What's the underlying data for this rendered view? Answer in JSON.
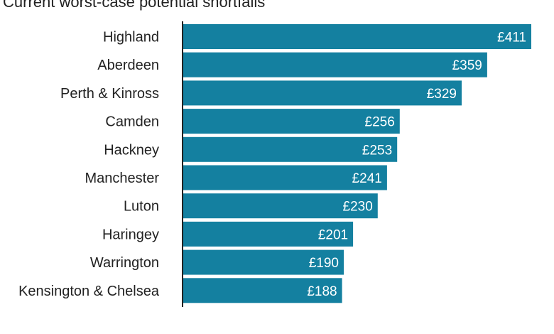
{
  "chart_data": {
    "type": "bar",
    "orientation": "horizontal",
    "title": "Current worst-case potential shortfalls",
    "categories": [
      "Highland",
      "Aberdeen",
      "Perth & Kinross",
      "Camden",
      "Hackney",
      "Manchester",
      "Luton",
      "Haringey",
      "Warrington",
      "Kensington & Chelsea"
    ],
    "values": [
      411,
      359,
      329,
      256,
      253,
      241,
      230,
      201,
      190,
      188
    ],
    "value_labels": [
      "£411",
      "£359",
      "£329",
      "£256",
      "£253",
      "£241",
      "£230",
      "£201",
      "£190",
      "£188"
    ],
    "xlim": [
      0,
      411
    ],
    "grid": false,
    "legend": "none",
    "bar_color": "#1480a0",
    "axis_color": "#222222"
  }
}
